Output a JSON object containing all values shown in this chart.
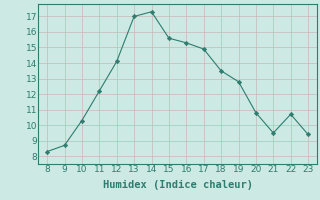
{
  "x": [
    8,
    9,
    10,
    11,
    12,
    13,
    14,
    15,
    16,
    17,
    18,
    19,
    20,
    21,
    22,
    23
  ],
  "y": [
    8.3,
    8.7,
    10.3,
    12.2,
    14.1,
    17.0,
    17.3,
    15.6,
    15.3,
    14.9,
    13.5,
    12.8,
    10.8,
    9.5,
    10.7,
    9.4
  ],
  "xlim": [
    7.5,
    23.5
  ],
  "ylim": [
    7.5,
    17.8
  ],
  "xticks": [
    8,
    9,
    10,
    11,
    12,
    13,
    14,
    15,
    16,
    17,
    18,
    19,
    20,
    21,
    22,
    23
  ],
  "yticks": [
    8,
    9,
    10,
    11,
    12,
    13,
    14,
    15,
    16,
    17
  ],
  "xlabel": "Humidex (Indice chaleur)",
  "line_color": "#2e7d6e",
  "marker": "D",
  "marker_size": 2.2,
  "bg_color": "#cce9e4",
  "grid_color": "#c8b8b8",
  "label_fontsize": 7.5,
  "tick_fontsize": 6.5
}
